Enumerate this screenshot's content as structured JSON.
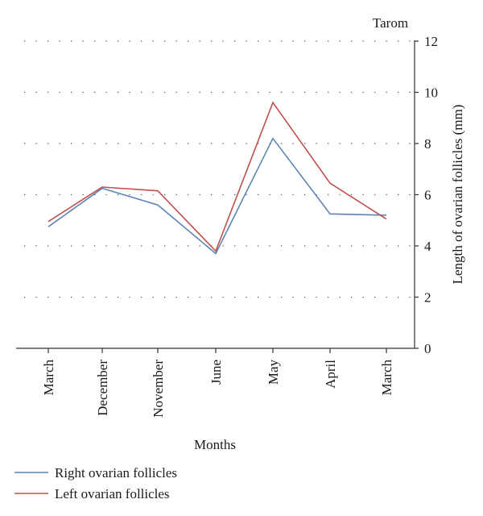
{
  "chart_data": {
    "type": "line",
    "title": "Tarom",
    "xlabel": "Months",
    "ylabel": "Length of ovarian follicles (mm)",
    "categories": [
      "March",
      "December",
      "November",
      "June",
      "May",
      "April",
      "March"
    ],
    "ylim": [
      0,
      12
    ],
    "yticks": [
      0,
      2,
      4,
      6,
      8,
      10,
      12
    ],
    "y_axis_side": "right",
    "grid": "horizontal dotted",
    "legend_position": "bottom-left",
    "series": [
      {
        "name": "Right ovarian follicles",
        "color": "#5b85b5",
        "values": [
          4.75,
          6.25,
          5.6,
          3.7,
          8.2,
          5.25,
          5.2
        ]
      },
      {
        "name": "Left ovarian follicles",
        "color": "#c0504d",
        "values": [
          4.95,
          6.3,
          6.15,
          3.8,
          9.6,
          6.45,
          5.05
        ]
      }
    ]
  }
}
